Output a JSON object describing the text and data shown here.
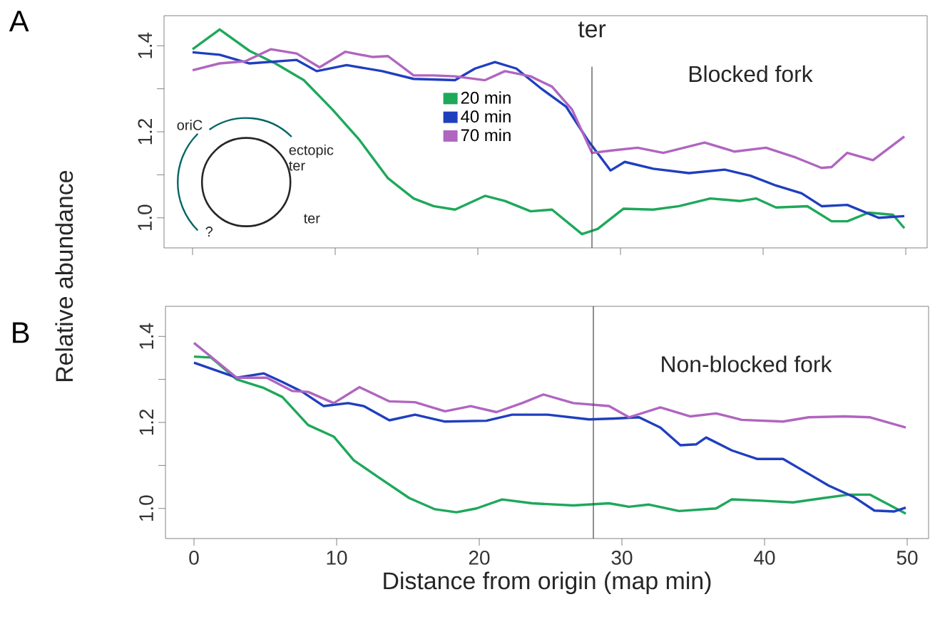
{
  "chart_data": [
    {
      "type": "line",
      "title": "A",
      "ylabel": "Relative abundance",
      "xlim": [
        -2,
        51.5
      ],
      "ylim": [
        0.93,
        1.47
      ],
      "xticks": [
        0,
        10,
        20,
        30,
        40,
        50
      ],
      "yticks": [
        {
          "value": 1.0,
          "label": "1.0"
        },
        {
          "value": 1.1,
          "label": null
        },
        {
          "value": 1.2,
          "label": "1.2"
        },
        {
          "value": 1.3,
          "label": null
        },
        {
          "value": 1.4,
          "label": "1.4"
        }
      ],
      "tick_labels": "y",
      "legend": "center",
      "ref_lines": [
        {
          "axis": "x",
          "value": 28,
          "label": "ter",
          "color": "#444444"
        }
      ],
      "annotations": [
        "Blocked fork",
        "oriC",
        "ectopic ter",
        "ter",
        "?"
      ],
      "series": [
        {
          "name": "20 min",
          "color": "#1ea85a",
          "x": [
            0,
            1.9,
            4.0,
            5.8,
            7.8,
            9.8,
            11.7,
            13.7,
            15.5,
            16.9,
            18.4,
            20.5,
            21.9,
            23.7,
            25.2,
            27.3,
            28.4,
            30.2,
            32.3,
            34.1,
            36.3,
            38.4,
            39.5,
            40.9,
            43.1,
            44.8,
            45.9,
            47.4,
            49.1,
            49.9
          ],
          "values": [
            1.392,
            1.438,
            1.388,
            1.359,
            1.32,
            1.252,
            1.181,
            1.092,
            1.045,
            1.027,
            1.019,
            1.051,
            1.039,
            1.015,
            1.019,
            0.962,
            0.974,
            1.021,
            1.019,
            1.027,
            1.045,
            1.039,
            1.045,
            1.024,
            1.027,
            0.992,
            0.992,
            1.012,
            1.007,
            0.976
          ]
        },
        {
          "name": "40 min",
          "color": "#1f3fbf",
          "x": [
            0,
            1.9,
            4.0,
            7.3,
            8.7,
            10.8,
            13.3,
            15.5,
            18.4,
            19.8,
            21.2,
            22.7,
            24.5,
            26.2,
            27.7,
            29.3,
            30.3,
            32.3,
            34.8,
            37.3,
            39.1,
            40.9,
            42.7,
            44.1,
            45.9,
            48.1,
            49.9
          ],
          "values": [
            1.385,
            1.379,
            1.359,
            1.367,
            1.341,
            1.355,
            1.341,
            1.323,
            1.32,
            1.347,
            1.362,
            1.347,
            1.299,
            1.258,
            1.181,
            1.11,
            1.13,
            1.114,
            1.104,
            1.112,
            1.098,
            1.075,
            1.057,
            1.027,
            1.03,
            1.0,
            1.004
          ]
        },
        {
          "name": "70 min",
          "color": "#b065c0",
          "x": [
            0,
            1.9,
            3.7,
            5.5,
            7.3,
            8.9,
            10.7,
            12.6,
            13.7,
            15.5,
            16.9,
            18.4,
            20.5,
            21.9,
            23.7,
            25.2,
            26.6,
            28.0,
            29.5,
            31.2,
            33.0,
            35.9,
            38.0,
            40.2,
            42.3,
            44.1,
            44.8,
            45.9,
            47.7,
            49.9
          ],
          "values": [
            1.343,
            1.359,
            1.364,
            1.392,
            1.382,
            1.35,
            1.386,
            1.374,
            1.376,
            1.331,
            1.331,
            1.329,
            1.32,
            1.341,
            1.329,
            1.305,
            1.252,
            1.151,
            1.157,
            1.163,
            1.151,
            1.175,
            1.154,
            1.163,
            1.14,
            1.116,
            1.118,
            1.151,
            1.134,
            1.189
          ]
        }
      ]
    },
    {
      "type": "line",
      "title": "B",
      "xlabel": "Distance from origin (map min)",
      "xlim": [
        -2,
        51.5
      ],
      "ylim": [
        0.93,
        1.47
      ],
      "xticks": [
        0,
        10,
        20,
        30,
        40,
        50
      ],
      "yticks": [
        {
          "value": 1.0,
          "label": "1.0"
        },
        {
          "value": 1.1,
          "label": null
        },
        {
          "value": 1.2,
          "label": "1.2"
        },
        {
          "value": 1.3,
          "label": null
        },
        {
          "value": 1.4,
          "label": "1.4"
        }
      ],
      "ref_lines": [
        {
          "axis": "x",
          "value": 28,
          "color": "#444444"
        }
      ],
      "annotations": [
        "Non-blocked fork"
      ],
      "series": [
        {
          "color": "#1ea85a",
          "x": [
            0,
            1.2,
            3.0,
            4.9,
            6.2,
            8.0,
            9.8,
            11.2,
            13.0,
            15.1,
            16.9,
            18.4,
            19.8,
            21.6,
            23.7,
            26.6,
            29.1,
            30.5,
            31.9,
            34.0,
            36.6,
            37.7,
            39.8,
            42.0,
            44.1,
            45.9,
            47.4,
            49.9
          ],
          "values": [
            1.353,
            1.351,
            1.3,
            1.28,
            1.259,
            1.194,
            1.167,
            1.112,
            1.071,
            1.024,
            0.998,
            0.991,
            1.0,
            1.021,
            1.012,
            1.007,
            1.012,
            1.004,
            1.009,
            0.994,
            1.0,
            1.021,
            1.018,
            1.014,
            1.024,
            1.032,
            1.032,
            0.988
          ]
        },
        {
          "color": "#1f3fbf",
          "x": [
            0,
            3.0,
            4.9,
            6.2,
            7.6,
            9.1,
            10.8,
            11.9,
            13.7,
            15.5,
            17.6,
            20.5,
            22.3,
            24.8,
            27.7,
            29.5,
            31.2,
            32.7,
            34.1,
            35.2,
            35.9,
            37.7,
            39.5,
            41.3,
            42.7,
            44.5,
            46.3,
            47.7,
            49.1,
            49.9
          ],
          "values": [
            1.339,
            1.304,
            1.314,
            1.294,
            1.271,
            1.238,
            1.245,
            1.238,
            1.205,
            1.218,
            1.202,
            1.204,
            1.218,
            1.218,
            1.207,
            1.209,
            1.212,
            1.188,
            1.147,
            1.149,
            1.165,
            1.135,
            1.115,
            1.115,
            1.088,
            1.053,
            1.026,
            0.995,
            0.993,
            1.002
          ]
        },
        {
          "color": "#b065c0",
          "x": [
            0,
            3.0,
            5.1,
            6.9,
            8.0,
            9.8,
            11.6,
            13.7,
            15.5,
            17.6,
            19.4,
            21.2,
            23.0,
            24.5,
            26.6,
            29.1,
            30.5,
            32.7,
            34.8,
            36.6,
            38.4,
            41.3,
            43.1,
            45.6,
            47.4,
            49.9
          ],
          "values": [
            1.385,
            1.304,
            1.304,
            1.273,
            1.271,
            1.245,
            1.282,
            1.249,
            1.247,
            1.226,
            1.238,
            1.224,
            1.245,
            1.265,
            1.245,
            1.238,
            1.212,
            1.235,
            1.214,
            1.221,
            1.206,
            1.202,
            1.212,
            1.214,
            1.212,
            1.188
          ]
        }
      ]
    }
  ]
}
